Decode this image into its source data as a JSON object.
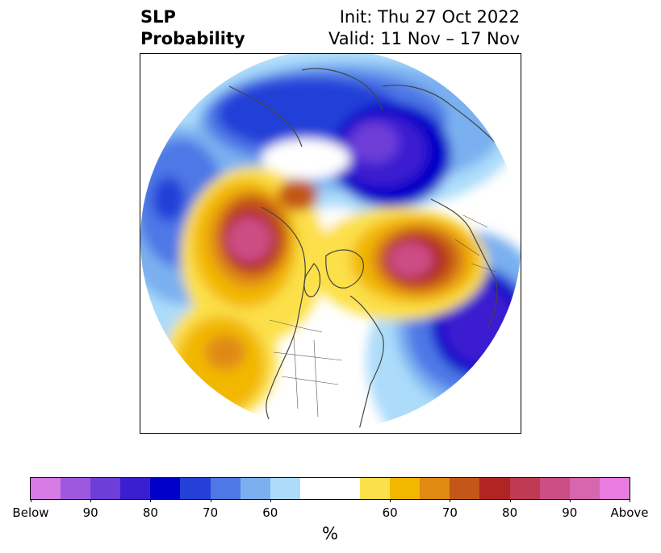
{
  "title": {
    "left_line1": "SLP",
    "left_line2": "Probability",
    "right_line1": "Init: Thu 27 Oct 2022",
    "right_line2": "Valid: 11 Nov – 17 Nov"
  },
  "colorbar": {
    "label": "%",
    "colors": [
      "#d67ae6",
      "#9e58e0",
      "#6e3ed8",
      "#3a1fd0",
      "#0000c8",
      "#2440d8",
      "#4e78e6",
      "#7ab0f0",
      "#acdcfa",
      "#ffffff",
      "#ffffff",
      "#fce04a",
      "#f2b800",
      "#e08a12",
      "#c45618",
      "#b02424",
      "#c03a52",
      "#cc4e84",
      "#d866ac",
      "#e87ce0"
    ],
    "ticks": [
      "Below",
      "90",
      "80",
      "70",
      "60",
      "60",
      "70",
      "80",
      "90",
      "Above"
    ]
  }
}
